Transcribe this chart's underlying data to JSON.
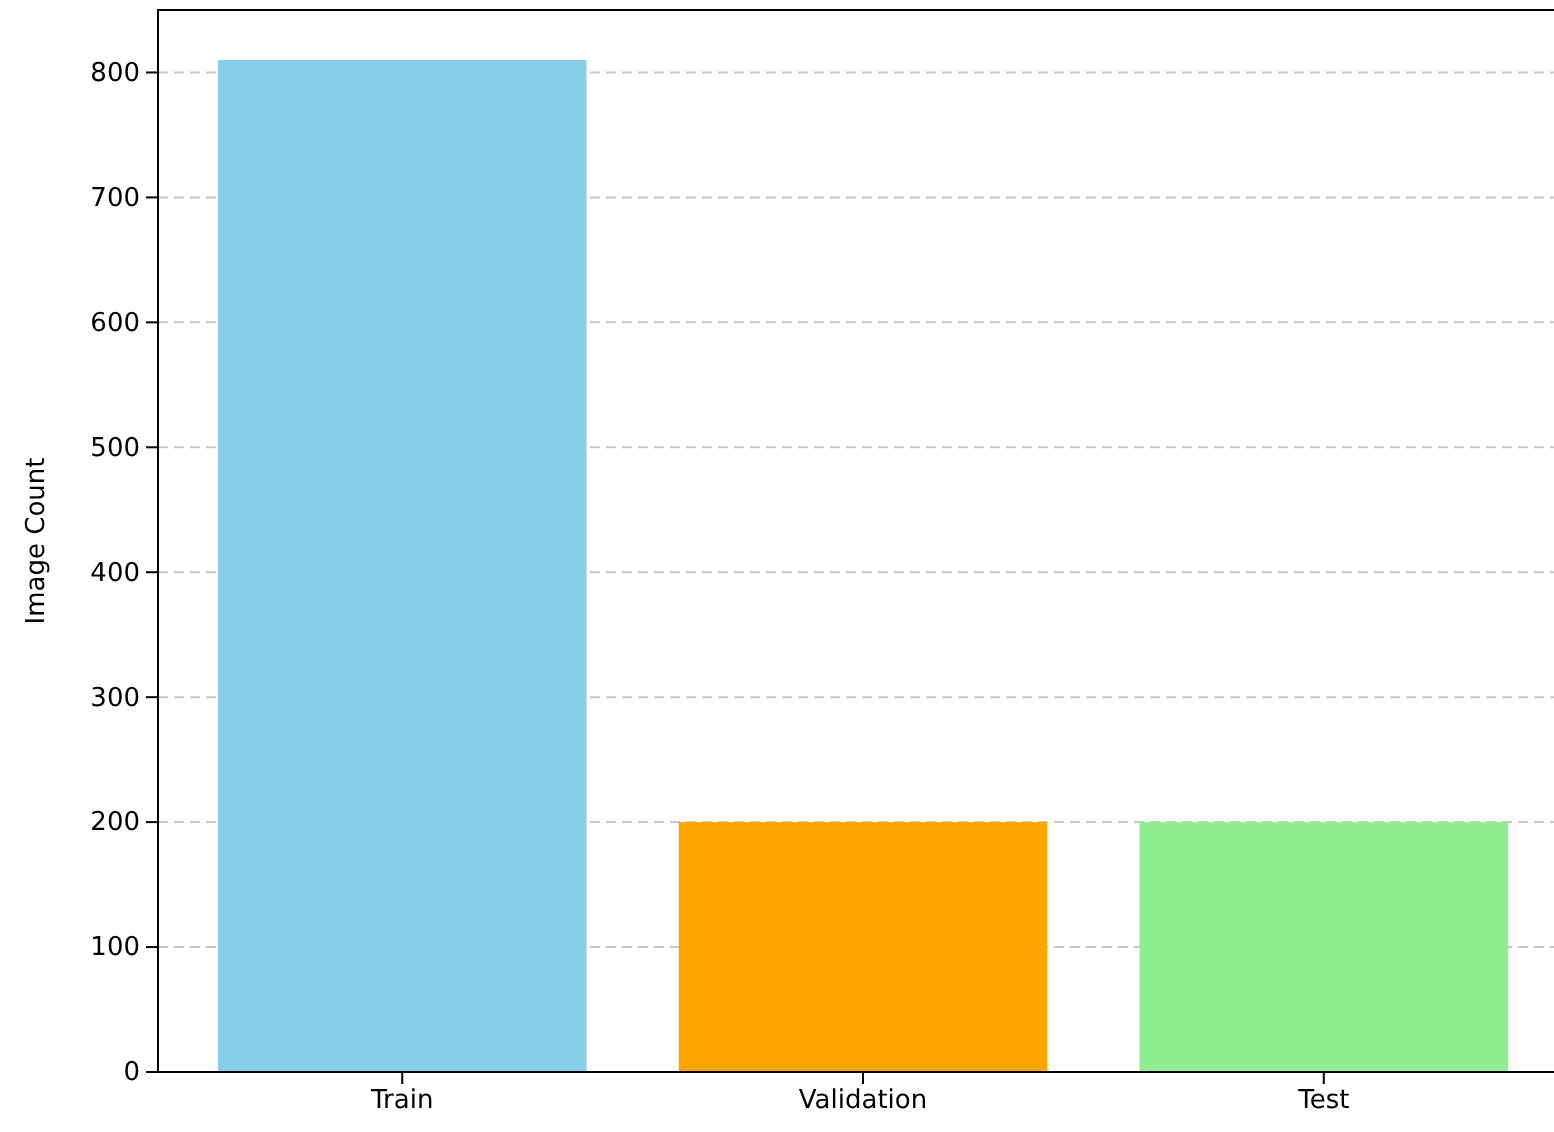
{
  "chart_data": {
    "type": "bar",
    "ylabel": "Image Count",
    "categories": [
      "Train",
      "Validation",
      "Test"
    ],
    "values": [
      810,
      200,
      200
    ],
    "colors": [
      "#87ceeb",
      "#ffa500",
      "#90ee90"
    ],
    "ylim": [
      0,
      850
    ],
    "yticks": [
      0,
      100,
      200,
      300,
      400,
      500,
      600,
      700,
      800
    ],
    "grid": "y"
  }
}
